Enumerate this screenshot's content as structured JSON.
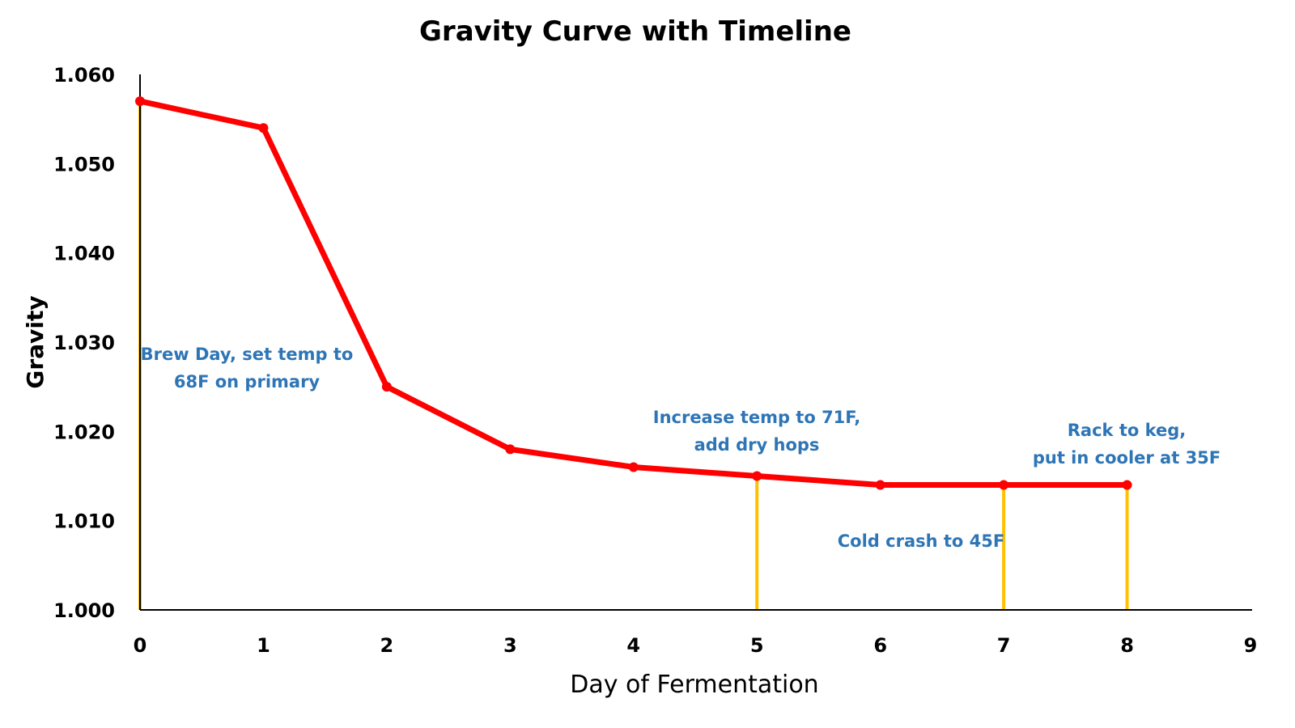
{
  "chart_data": {
    "type": "line",
    "title": "Gravity Curve with Timeline",
    "xlabel": "Day of Fermentation",
    "ylabel": "Gravity",
    "xlim": [
      0,
      9
    ],
    "ylim": [
      1.0,
      1.06
    ],
    "x_ticks": [
      "0",
      "1",
      "2",
      "3",
      "4",
      "5",
      "6",
      "7",
      "8",
      "9"
    ],
    "y_ticks": [
      "1.000",
      "1.010",
      "1.020",
      "1.030",
      "1.040",
      "1.050",
      "1.060"
    ],
    "grid": false,
    "series": [
      {
        "x": [
          0,
          1,
          2,
          3,
          4,
          5,
          6,
          7,
          8
        ],
        "values": [
          1.057,
          1.054,
          1.025,
          1.018,
          1.016,
          1.015,
          1.014,
          1.014,
          1.014
        ],
        "color": "#ff0000"
      }
    ],
    "timeline_markers": [
      {
        "day": 0,
        "lines": [
          "Brew Day, set temp to",
          "68F on primary"
        ]
      },
      {
        "day": 5,
        "lines": [
          "Increase temp to 71F,",
          "add dry hops"
        ]
      },
      {
        "day": 7,
        "lines": [
          "Cold crash to 45F"
        ]
      },
      {
        "day": 8,
        "lines": [
          "Rack to keg,",
          "put in cooler at 35F"
        ]
      }
    ],
    "colors": {
      "line": "#ff0000",
      "marker_lines": "#ffc000",
      "annotation_text": "#2e75b6",
      "axis": "#000000"
    }
  }
}
